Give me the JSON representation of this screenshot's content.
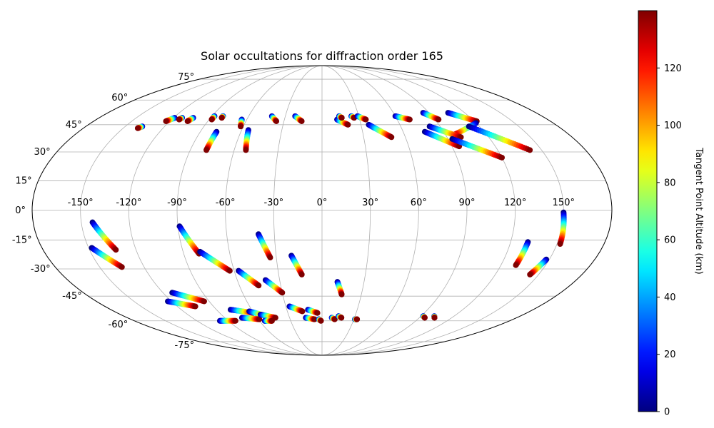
{
  "chart_data": {
    "type": "scatter",
    "projection": "mollweide",
    "title": "Solar occultations for diffraction order 165",
    "x_tick_labels": [
      "-150°",
      "-120°",
      "-90°",
      "-60°",
      "-30°",
      "0°",
      "30°",
      "60°",
      "90°",
      "120°",
      "150°"
    ],
    "x_ticks": [
      -150,
      -120,
      -90,
      -60,
      -30,
      0,
      30,
      60,
      90,
      120,
      150
    ],
    "y_tick_labels": [
      "-75°",
      "-60°",
      "-45°",
      "-30°",
      "-15°",
      "0°",
      "15°",
      "30°",
      "45°",
      "60°",
      "75°"
    ],
    "y_ticks": [
      -75,
      -60,
      -45,
      -30,
      -15,
      0,
      15,
      30,
      45,
      60,
      75
    ],
    "grid": true,
    "colormap": "jet",
    "colorbar": {
      "label": "Tangent Point Altitude (km)",
      "range": [
        0,
        140
      ],
      "ticks": [
        0,
        20,
        40,
        60,
        80,
        100,
        120
      ],
      "tick_labels": [
        "0",
        "20",
        "40",
        "60",
        "80",
        "100",
        "120"
      ],
      "placement": "right"
    },
    "altitude_range": [
      0,
      140
    ],
    "tracks": [
      {
        "start": [
          -137,
          44
        ],
        "end": [
          -139,
          43
        ]
      },
      {
        "start": [
          -119,
          49
        ],
        "end": [
          -123,
          47
        ]
      },
      {
        "start": [
          -113,
          49
        ],
        "end": [
          -114,
          48
        ]
      },
      {
        "start": [
          -104,
          49
        ],
        "end": [
          -106,
          47
        ]
      },
      {
        "start": [
          -88,
          50
        ],
        "end": [
          -88,
          48
        ]
      },
      {
        "start": [
          -81,
          50
        ],
        "end": [
          -81,
          49
        ]
      },
      {
        "start": [
          -78,
          41
        ],
        "end": [
          -79,
          31
        ]
      },
      {
        "start": [
          -64,
          48
        ],
        "end": [
          -62,
          44
        ]
      },
      {
        "start": [
          -55,
          42
        ],
        "end": [
          -52,
          31
        ]
      },
      {
        "start": [
          -41,
          50
        ],
        "end": [
          -36,
          47
        ]
      },
      {
        "start": [
          -22,
          50
        ],
        "end": [
          -16,
          47
        ]
      },
      {
        "start": [
          12,
          48
        ],
        "end": [
          20,
          45
        ]
      },
      {
        "start": [
          14,
          50
        ],
        "end": [
          16,
          49
        ]
      },
      {
        "start": [
          24,
          50
        ],
        "end": [
          26,
          49
        ]
      },
      {
        "start": [
          29,
          50
        ],
        "end": [
          35,
          48
        ]
      },
      {
        "start": [
          60,
          50
        ],
        "end": [
          70,
          48
        ]
      },
      {
        "start": [
          85,
          52
        ],
        "end": [
          93,
          48
        ]
      },
      {
        "start": [
          106,
          52
        ],
        "end": [
          122,
          47
        ]
      },
      {
        "start": [
          120,
          46
        ],
        "end": [
          95,
          39
        ]
      },
      {
        "start": [
          112,
          44
        ],
        "end": [
          142,
          31
        ]
      },
      {
        "start": [
          82,
          44
        ],
        "end": [
          100,
          38
        ]
      },
      {
        "start": [
          76,
          41
        ],
        "end": [
          95,
          33
        ]
      },
      {
        "start": [
          93,
          37
        ],
        "end": [
          120,
          27
        ]
      },
      {
        "start": [
          36,
          45
        ],
        "end": [
          50,
          38
        ]
      },
      {
        "start": [
          -143,
          -6
        ],
        "end": [
          -133,
          -20
        ]
      },
      {
        "start": [
          -148,
          -19
        ],
        "end": [
          -135,
          -29
        ]
      },
      {
        "start": [
          -89,
          -8
        ],
        "end": [
          -80,
          -22
        ]
      },
      {
        "start": [
          -79,
          -21
        ],
        "end": [
          -63,
          -31
        ]
      },
      {
        "start": [
          -57,
          -31
        ],
        "end": [
          -46,
          -39
        ]
      },
      {
        "start": [
          -40,
          -12
        ],
        "end": [
          -34,
          -24
        ]
      },
      {
        "start": [
          -40,
          -36
        ],
        "end": [
          -30,
          -43
        ]
      },
      {
        "start": [
          -20,
          -23
        ],
        "end": [
          -14,
          -33
        ]
      },
      {
        "start": [
          11,
          -37
        ],
        "end": [
          15,
          -44
        ]
      },
      {
        "start": [
          -113,
          -43
        ],
        "end": [
          -94,
          -48
        ]
      },
      {
        "start": [
          -123,
          -48
        ],
        "end": [
          -105,
          -51
        ]
      },
      {
        "start": [
          -27,
          -51
        ],
        "end": [
          -17,
          -54
        ]
      },
      {
        "start": [
          -12,
          -53
        ],
        "end": [
          -4,
          -55
        ]
      },
      {
        "start": [
          -78,
          -53
        ],
        "end": [
          -60,
          -55
        ]
      },
      {
        "start": [
          -63,
          -54
        ],
        "end": [
          -50,
          -57
        ]
      },
      {
        "start": [
          -74,
          -58
        ],
        "end": [
          -59,
          -59
        ]
      },
      {
        "start": [
          -98,
          -60
        ],
        "end": [
          -83,
          -60
        ]
      },
      {
        "start": [
          -15,
          -58
        ],
        "end": [
          -7,
          -59
        ]
      },
      {
        "start": [
          -3,
          -59
        ],
        "end": [
          -1,
          -60
        ]
      },
      {
        "start": [
          9,
          -58
        ],
        "end": [
          12,
          -59
        ]
      },
      {
        "start": [
          15,
          -57
        ],
        "end": [
          18,
          -58
        ]
      },
      {
        "start": [
          31,
          -59
        ],
        "end": [
          33,
          -59
        ]
      },
      {
        "start": [
          -55,
          -56
        ],
        "end": [
          -43,
          -58
        ]
      },
      {
        "start": [
          -55,
          -60
        ],
        "end": [
          -48,
          -60
        ]
      },
      {
        "start": [
          150,
          -1
        ],
        "end": [
          152,
          -17
        ]
      },
      {
        "start": [
          131,
          -16
        ],
        "end": [
          130,
          -28
        ]
      },
      {
        "start": [
          148,
          -25
        ],
        "end": [
          144,
          -33
        ]
      },
      {
        "start": [
          92,
          -57
        ],
        "end": [
          95,
          -58
        ]
      },
      {
        "start": [
          102,
          -57
        ],
        "end": [
          104,
          -58
        ]
      }
    ]
  }
}
